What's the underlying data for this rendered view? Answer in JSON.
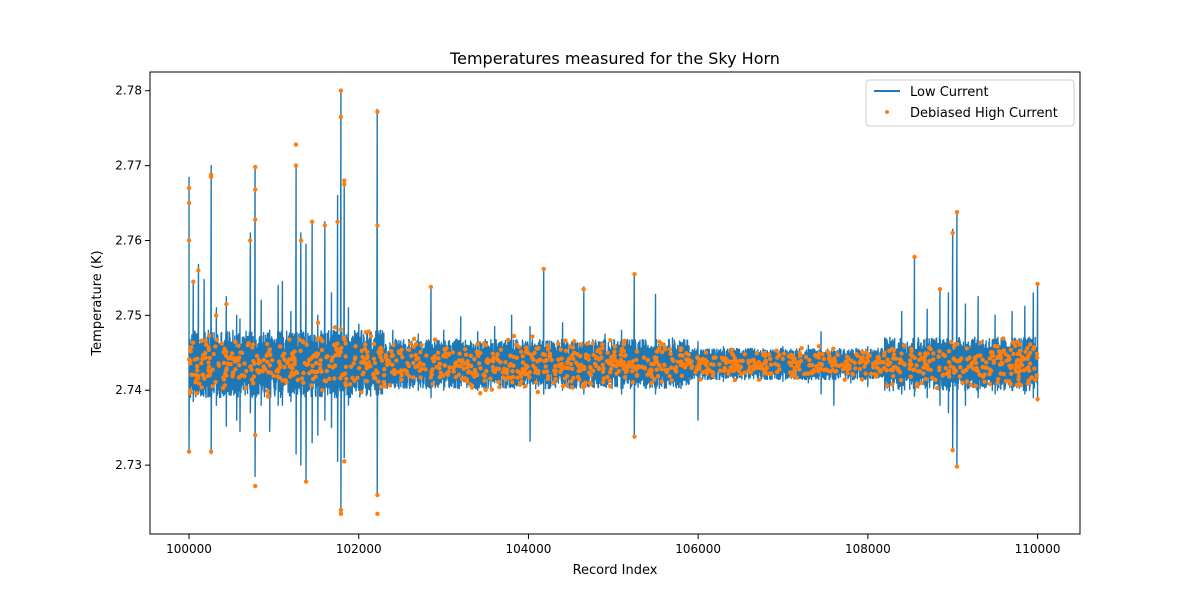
{
  "chart_data": {
    "type": "line",
    "title": "Temperatures measured for the Sky Horn",
    "xlabel": "Record Index",
    "ylabel": "Temperature (K)",
    "xlim": [
      99540,
      110500
    ],
    "ylim": [
      2.7208,
      2.7825
    ],
    "xticks": [
      100000,
      102000,
      104000,
      106000,
      108000,
      110000
    ],
    "yticks": [
      2.73,
      2.74,
      2.75,
      2.76,
      2.77,
      2.78
    ],
    "xtick_labels": [
      "100000",
      "102000",
      "104000",
      "106000",
      "108000",
      "110000"
    ],
    "ytick_labels": [
      "2.73",
      "2.74",
      "2.75",
      "2.76",
      "2.77",
      "2.78"
    ],
    "grid": false,
    "legend_position": "top-right",
    "baseline": 2.7435,
    "colors": {
      "low": "#1f77b4",
      "high": "#ff7f0e"
    },
    "series": [
      {
        "name": "Low Current",
        "style": "line",
        "spikes": [
          [
            100000,
            2.7685,
            2.7318
          ],
          [
            100050,
            2.7545,
            2.7385
          ],
          [
            100110,
            2.7568,
            2.7395
          ],
          [
            100180,
            2.7548,
            2.7402
          ],
          [
            100260,
            2.77,
            2.7315
          ],
          [
            100320,
            2.751,
            2.738
          ],
          [
            100440,
            2.7525,
            2.7352
          ],
          [
            100560,
            2.75,
            2.736
          ],
          [
            100600,
            2.7495,
            2.7345
          ],
          [
            100720,
            2.761,
            2.737
          ],
          [
            100780,
            2.7698,
            2.7285
          ],
          [
            100850,
            2.752,
            2.738
          ],
          [
            100950,
            2.748,
            2.7345
          ],
          [
            101050,
            2.754,
            2.738
          ],
          [
            101100,
            2.7545,
            2.738
          ],
          [
            101200,
            2.7505,
            2.7385
          ],
          [
            101260,
            2.77,
            2.7315
          ],
          [
            101320,
            2.761,
            2.73
          ],
          [
            101380,
            2.7595,
            2.728
          ],
          [
            101450,
            2.7625,
            2.733
          ],
          [
            101520,
            2.75,
            2.734
          ],
          [
            101600,
            2.7625,
            2.736
          ],
          [
            101680,
            2.753,
            2.735
          ],
          [
            101750,
            2.766,
            2.7305
          ],
          [
            101790,
            2.7798,
            2.724
          ],
          [
            101830,
            2.768,
            2.731
          ],
          [
            101880,
            2.751,
            2.738
          ],
          [
            102000,
            2.7488,
            2.74
          ],
          [
            102100,
            2.7478,
            2.7395
          ],
          [
            102220,
            2.7775,
            2.726
          ],
          [
            102400,
            2.748,
            2.741
          ],
          [
            102550,
            2.746,
            2.7405
          ],
          [
            102700,
            2.7475,
            2.74
          ],
          [
            102850,
            2.7538,
            2.739
          ],
          [
            103000,
            2.748,
            2.74
          ],
          [
            103200,
            2.7498,
            2.741
          ],
          [
            103400,
            2.7478,
            2.74
          ],
          [
            103600,
            2.7485,
            2.741
          ],
          [
            103800,
            2.75,
            2.7405
          ],
          [
            104020,
            2.7485,
            2.7332
          ],
          [
            104180,
            2.7562,
            2.7395
          ],
          [
            104400,
            2.749,
            2.74
          ],
          [
            104650,
            2.7538,
            2.7395
          ],
          [
            104900,
            2.7475,
            2.7405
          ],
          [
            105100,
            2.748,
            2.7395
          ],
          [
            105250,
            2.7555,
            2.7338
          ],
          [
            105500,
            2.7528,
            2.7395
          ],
          [
            105700,
            2.747,
            2.741
          ],
          [
            106000,
            2.7465,
            2.736
          ],
          [
            106300,
            2.7458,
            2.7412
          ],
          [
            106600,
            2.7455,
            2.7415
          ],
          [
            107000,
            2.7458,
            2.7412
          ],
          [
            107300,
            2.746,
            2.741
          ],
          [
            107450,
            2.7478,
            2.7395
          ],
          [
            107600,
            2.7455,
            2.738
          ],
          [
            107800,
            2.7452,
            2.741
          ],
          [
            108000,
            2.7458,
            2.7405
          ],
          [
            108200,
            2.747,
            2.74
          ],
          [
            108400,
            2.7505,
            2.7395
          ],
          [
            108550,
            2.7578,
            2.7392
          ],
          [
            108700,
            2.7508,
            2.739
          ],
          [
            108850,
            2.7535,
            2.738
          ],
          [
            108950,
            2.753,
            2.737
          ],
          [
            109000,
            2.7615,
            2.7322
          ],
          [
            109050,
            2.7638,
            2.7298
          ],
          [
            109150,
            2.7515,
            2.738
          ],
          [
            109300,
            2.7525,
            2.739
          ],
          [
            109500,
            2.75,
            2.7395
          ],
          [
            109700,
            2.7505,
            2.74
          ],
          [
            109850,
            2.7512,
            2.7395
          ],
          [
            109950,
            2.753,
            2.739
          ],
          [
            110000,
            2.754,
            2.7385
          ]
        ]
      },
      {
        "name": "Debiased High Current",
        "style": "scatter",
        "outliers": [
          [
            100000,
            2.767
          ],
          [
            100000,
            2.765
          ],
          [
            100000,
            2.76
          ],
          [
            100000,
            2.7318
          ],
          [
            100050,
            2.7545
          ],
          [
            100110,
            2.756
          ],
          [
            100260,
            2.7688
          ],
          [
            100260,
            2.7685
          ],
          [
            100260,
            2.7318
          ],
          [
            100320,
            2.75
          ],
          [
            100440,
            2.7515
          ],
          [
            100720,
            2.76
          ],
          [
            100780,
            2.7698
          ],
          [
            100780,
            2.7668
          ],
          [
            100780,
            2.7628
          ],
          [
            100780,
            2.7272
          ],
          [
            100780,
            2.734
          ],
          [
            101260,
            2.7728
          ],
          [
            101260,
            2.77
          ],
          [
            101320,
            2.76
          ],
          [
            101380,
            2.7278
          ],
          [
            101450,
            2.7625
          ],
          [
            101520,
            2.749
          ],
          [
            101600,
            2.762
          ],
          [
            101790,
            2.78
          ],
          [
            101790,
            2.7765
          ],
          [
            101830,
            2.768
          ],
          [
            101830,
            2.7675
          ],
          [
            101750,
            2.7625
          ],
          [
            101790,
            2.724
          ],
          [
            101790,
            2.7235
          ],
          [
            101830,
            2.7305
          ],
          [
            102220,
            2.7772
          ],
          [
            102220,
            2.762
          ],
          [
            102220,
            2.726
          ],
          [
            102220,
            2.7235
          ],
          [
            102850,
            2.7538
          ],
          [
            104180,
            2.7562
          ],
          [
            104650,
            2.7535
          ],
          [
            105250,
            2.7555
          ],
          [
            105250,
            2.7338
          ],
          [
            108550,
            2.7578
          ],
          [
            108850,
            2.7535
          ],
          [
            109000,
            2.761
          ],
          [
            109000,
            2.732
          ],
          [
            109050,
            2.7638
          ],
          [
            109050,
            2.7298
          ],
          [
            110000,
            2.7542
          ],
          [
            110000,
            2.7388
          ]
        ]
      }
    ]
  }
}
